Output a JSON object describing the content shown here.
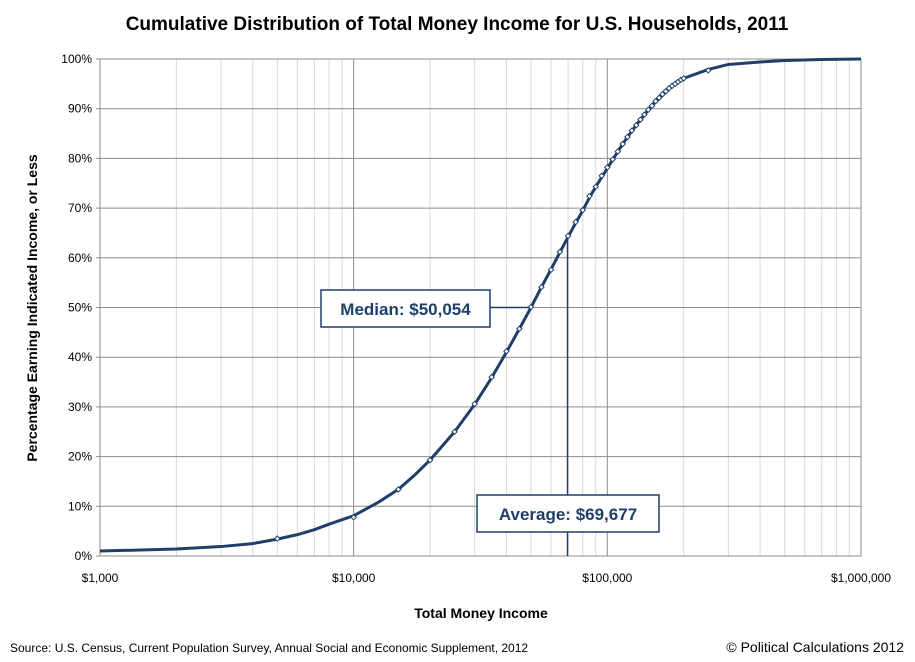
{
  "chart_data": {
    "type": "line",
    "title": "Cumulative Distribution of Total Money Income for U.S. Households, 2011",
    "xlabel": "Total Money Income",
    "ylabel": "Percentage Earning Indicated Income, or Less",
    "x_scale": "log",
    "xlim": [
      1000,
      1000000
    ],
    "ylim": [
      0,
      100
    ],
    "x_ticks": [
      1000,
      10000,
      100000,
      1000000
    ],
    "x_tick_labels": [
      "$1,000",
      "$10,000",
      "$100,000",
      "$1,000,000"
    ],
    "y_ticks": [
      0,
      10,
      20,
      30,
      40,
      50,
      60,
      70,
      80,
      90,
      100
    ],
    "y_tick_labels": [
      "0%",
      "10%",
      "20%",
      "30%",
      "40%",
      "50%",
      "60%",
      "70%",
      "80%",
      "90%",
      "100%"
    ],
    "grid": true,
    "series": [
      {
        "name": "Cumulative Distribution",
        "color": "#1f3f6a",
        "curve": {
          "x": [
            1000,
            2000,
            3000,
            4000,
            5000,
            6000,
            7000,
            8000,
            9000,
            10000,
            12500,
            15000,
            17500,
            20000,
            25000,
            30000,
            35000,
            40000,
            45000,
            50000,
            55000,
            60000,
            65000,
            70000,
            75000,
            80000,
            85000,
            90000,
            95000,
            100000,
            110000,
            120000,
            130000,
            140000,
            150000,
            160000,
            170000,
            180000,
            190000,
            200000,
            250000,
            300000,
            400000,
            500000,
            700000,
            1000000
          ],
          "y": [
            1.0,
            1.4,
            1.9,
            2.5,
            3.4,
            4.3,
            5.3,
            6.4,
            7.3,
            8.1,
            10.8,
            13.4,
            16.4,
            19.3,
            25.0,
            30.5,
            35.9,
            41.0,
            45.7,
            50.0,
            54.1,
            57.7,
            61.1,
            64.2,
            67.0,
            69.5,
            72.1,
            74.3,
            76.2,
            78.0,
            81.4,
            84.3,
            86.7,
            88.8,
            90.6,
            92.2,
            93.5,
            94.6,
            95.4,
            96.1,
            97.9,
            98.9,
            99.4,
            99.7,
            99.9,
            100.0
          ]
        },
        "markers": {
          "x": [
            5000,
            10000,
            15000,
            20000,
            25000,
            30000,
            35000,
            40000,
            45000,
            50000,
            55000,
            60000,
            65000,
            70000,
            75000,
            80000,
            85000,
            90000,
            95000,
            100000,
            105000,
            110000,
            115000,
            120000,
            125000,
            130000,
            135000,
            140000,
            145000,
            150000,
            155000,
            160000,
            165000,
            170000,
            175000,
            180000,
            185000,
            190000,
            195000,
            200000,
            250000
          ],
          "y": [
            3.5,
            7.8,
            13.4,
            19.3,
            25.0,
            30.6,
            36.0,
            41.2,
            45.7,
            50.1,
            54.1,
            57.6,
            61.2,
            64.4,
            67.2,
            69.6,
            72.4,
            74.3,
            76.5,
            78.2,
            79.8,
            81.4,
            82.9,
            84.3,
            85.6,
            86.7,
            87.8,
            88.8,
            89.8,
            90.6,
            91.5,
            92.2,
            92.9,
            93.5,
            94.1,
            94.6,
            95.0,
            95.4,
            95.8,
            96.1,
            97.7
          ]
        }
      }
    ],
    "annotations": [
      {
        "name": "median",
        "text": "Median: $50,054",
        "x": 50054,
        "y": 50
      },
      {
        "name": "average",
        "text": "Average: $69,677",
        "x": 69677,
        "y": 64
      }
    ]
  },
  "footer": {
    "source": "Source: U.S. Census, Current Population Survey, Annual Social and Economic Supplement, 2012",
    "copyright": "© Political Calculations 2012"
  }
}
